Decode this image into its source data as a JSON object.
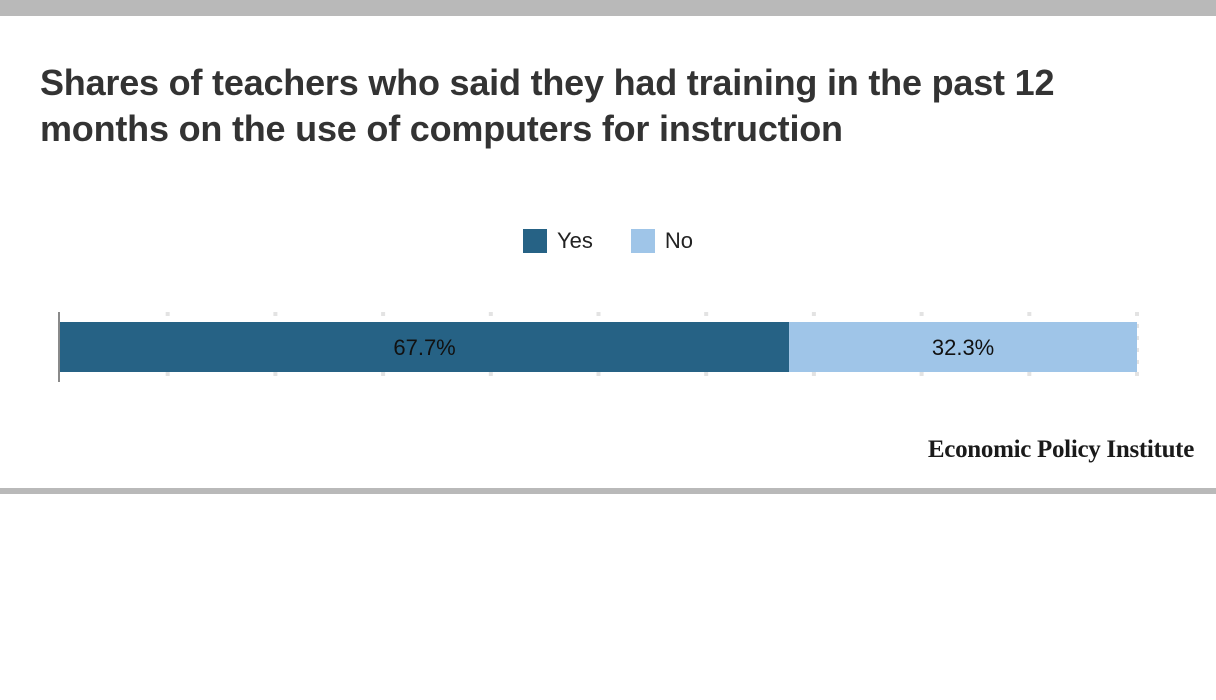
{
  "title": "Shares of teachers who said they had training in the past 12 months on the use of computers for instruction",
  "legend": {
    "items": [
      {
        "label": "Yes",
        "color": "#266285"
      },
      {
        "label": "No",
        "color": "#9fc5e8"
      }
    ]
  },
  "credit": "Economic Policy Institute",
  "chart_data": {
    "type": "bar",
    "orientation": "horizontal",
    "stacked": true,
    "categories": [
      ""
    ],
    "series": [
      {
        "name": "Yes",
        "values": [
          67.7
        ],
        "color": "#266285",
        "label": "67.7%"
      },
      {
        "name": "No",
        "values": [
          32.3
        ],
        "color": "#9fc5e8",
        "label": "32.3%"
      }
    ],
    "xlim": [
      0,
      100
    ],
    "grid": true,
    "legend_position": "top-center",
    "title": "Shares of teachers who said they had training in the past 12 months on the use of computers for instruction",
    "xlabel": "",
    "ylabel": ""
  }
}
